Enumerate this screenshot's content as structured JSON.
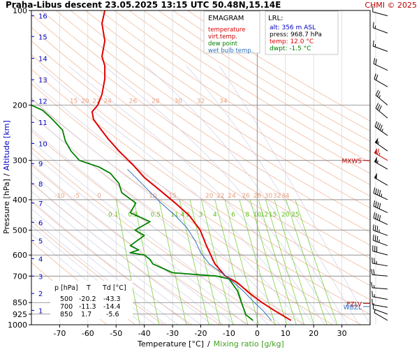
{
  "header": {
    "title": "Praha-Libus   descent   23.05.2025 13:15 UTC  50.48N,15.14E",
    "credit": "CHMI © 2025"
  },
  "colors": {
    "temperature": "#e00000",
    "virt_temp": "#c00000",
    "dew_point": "#008000",
    "wet_bulb": "#3070c0",
    "dry_adiabat": "#f0b090",
    "moist_adiabat": "#c8c8e6",
    "mixing_ratio": "#80d040",
    "isobar": "#808080",
    "altitude": "#0000c0",
    "level_marker": "#c00000"
  },
  "legend": {
    "title": "EMAGRAM",
    "items": [
      {
        "label": "temperature",
        "color": "#e00000"
      },
      {
        "label": "virt.temp.",
        "color": "#c00000"
      },
      {
        "label": "dew point",
        "color": "#008000"
      },
      {
        "label": "wet bulb temp.",
        "color": "#3070c0"
      }
    ]
  },
  "lrl": {
    "title": "LRL:",
    "lines": [
      {
        "text": "alt: 356 m ASL",
        "color": "#0000c0"
      },
      {
        "text": "press: 968.7 hPa",
        "color": "#000000"
      },
      {
        "text": "temp: 12.0 °C",
        "color": "#e00000"
      },
      {
        "text": "dwpt: -1.5 °C",
        "color": "#008000"
      }
    ]
  },
  "table": {
    "header": [
      "p [hPa]",
      "T",
      "Td [°C]"
    ],
    "rows": [
      [
        "500",
        "-20.2",
        "-43.3"
      ],
      [
        "700",
        "-11.3",
        "-14.4"
      ],
      [
        "850",
        "1.7",
        "-5.6"
      ]
    ]
  },
  "axes": {
    "ylabel_pressure": "Pressure [hPa]",
    "ylabel_sep": "/",
    "ylabel_altitude": "Altitude [km]",
    "xlabel_temp": "Temperature [°C]",
    "xlabel_sep": "/",
    "xlabel_mixing": "Mixing ratio [g/kg]"
  },
  "chart_data": {
    "type": "line",
    "y_scale": "log-pressure",
    "ylim": [
      1000,
      100
    ],
    "xlim": [
      -80,
      40
    ],
    "pressure_ticks": [
      100,
      200,
      300,
      400,
      500,
      600,
      700,
      850,
      925,
      1000
    ],
    "temperature_ticks": [
      -70,
      -60,
      -50,
      -40,
      -30,
      -20,
      -10,
      0,
      10,
      20,
      30
    ],
    "altitude_ticks": [
      {
        "label": "1",
        "p": 900
      },
      {
        "label": "2",
        "p": 795
      },
      {
        "label": "3",
        "p": 700
      },
      {
        "label": "4",
        "p": 616
      },
      {
        "label": "5",
        "p": 540
      },
      {
        "label": "6",
        "p": 472
      },
      {
        "label": "7",
        "p": 410
      },
      {
        "label": "8",
        "p": 356
      },
      {
        "label": "9",
        "p": 307
      },
      {
        "label": "10",
        "p": 265
      },
      {
        "label": "11",
        "p": 227
      },
      {
        "label": "12",
        "p": 194
      },
      {
        "label": "13",
        "p": 166
      },
      {
        "label": "14",
        "p": 142
      },
      {
        "label": "15",
        "p": 121
      },
      {
        "label": "16",
        "p": 104
      }
    ],
    "dry_adiabat_labels": [
      {
        "text": "15",
        "t": -65,
        "p": 200
      },
      {
        "text": "20",
        "t": -61,
        "p": 200
      },
      {
        "text": "22",
        "t": -57,
        "p": 200
      },
      {
        "text": "24",
        "t": -53,
        "p": 200
      },
      {
        "text": "26",
        "t": -44,
        "p": 200
      },
      {
        "text": "28",
        "t": -36,
        "p": 200
      },
      {
        "text": "30",
        "t": -28,
        "p": 200
      },
      {
        "text": "32",
        "t": -20,
        "p": 200
      },
      {
        "text": "34",
        "t": -12,
        "p": 200
      },
      {
        "text": "-10",
        "t": -70,
        "p": 400
      },
      {
        "text": "-5",
        "t": -64,
        "p": 400
      },
      {
        "text": "0",
        "t": -56,
        "p": 400
      },
      {
        "text": "10",
        "t": -37,
        "p": 400
      },
      {
        "text": "15",
        "t": -30,
        "p": 400
      },
      {
        "text": "20",
        "t": -17,
        "p": 400
      },
      {
        "text": "22",
        "t": -13,
        "p": 400
      },
      {
        "text": "24",
        "t": -9,
        "p": 400
      },
      {
        "text": "26",
        "t": -4,
        "p": 400
      },
      {
        "text": "28",
        "t": 0,
        "p": 400
      },
      {
        "text": "30",
        "t": 4,
        "p": 400
      },
      {
        "text": "32",
        "t": 7,
        "p": 400
      },
      {
        "text": "34",
        "t": 10,
        "p": 400
      }
    ],
    "mixing_ratio_labels": [
      {
        "text": "0.1",
        "t": -51,
        "p": 460
      },
      {
        "text": "0.2",
        "t": -44,
        "p": 460
      },
      {
        "text": "0.5",
        "t": -36,
        "p": 460
      },
      {
        "text": "1",
        "t": -30,
        "p": 460
      },
      {
        "text": "1.4",
        "t": -27.5,
        "p": 460
      },
      {
        "text": "2",
        "t": -24.5,
        "p": 460
      },
      {
        "text": "3",
        "t": -20,
        "p": 460
      },
      {
        "text": "4",
        "t": -15,
        "p": 460
      },
      {
        "text": "6",
        "t": -8.5,
        "p": 460
      },
      {
        "text": "8",
        "t": -3.5,
        "p": 460
      },
      {
        "text": "10",
        "t": 0,
        "p": 460
      },
      {
        "text": "12",
        "t": 2.5,
        "p": 460
      },
      {
        "text": "15",
        "t": 5.5,
        "p": 460
      },
      {
        "text": "20",
        "t": 10,
        "p": 460
      },
      {
        "text": "25",
        "t": 13.5,
        "p": 460
      }
    ],
    "series": [
      {
        "name": "temperature",
        "color": "#e00000",
        "points": [
          [
            12.0,
            968.7
          ],
          [
            6,
            900
          ],
          [
            1.7,
            850
          ],
          [
            -3,
            790
          ],
          [
            -7,
            735
          ],
          [
            -11.3,
            700
          ],
          [
            -15,
            640
          ],
          [
            -18,
            560
          ],
          [
            -20.2,
            500
          ],
          [
            -24,
            450
          ],
          [
            -29,
            410
          ],
          [
            -35,
            370
          ],
          [
            -40,
            340
          ],
          [
            -44,
            310
          ],
          [
            -49,
            280
          ],
          [
            -53,
            255
          ],
          [
            -56,
            235
          ],
          [
            -58,
            222
          ],
          [
            -58.5,
            210
          ],
          [
            -56.5,
            200
          ],
          [
            -55,
            185
          ],
          [
            -54,
            165
          ],
          [
            -54,
            150
          ],
          [
            -55,
            140
          ],
          [
            -54,
            125
          ],
          [
            -55,
            110
          ],
          [
            -54,
            100
          ]
        ]
      },
      {
        "name": "dew point",
        "color": "#008000",
        "points": [
          [
            -1.5,
            968.7
          ],
          [
            -4,
            930
          ],
          [
            -5.6,
            850
          ],
          [
            -7,
            780
          ],
          [
            -10,
            715
          ],
          [
            -14.4,
            700
          ],
          [
            -30,
            683
          ],
          [
            -37,
            640
          ],
          [
            -38,
            620
          ],
          [
            -40,
            600
          ],
          [
            -45,
            590
          ],
          [
            -42,
            578
          ],
          [
            -45,
            560
          ],
          [
            -40,
            520
          ],
          [
            -43.3,
            500
          ],
          [
            -38,
            470
          ],
          [
            -45,
            440
          ],
          [
            -43,
            410
          ],
          [
            -48,
            380
          ],
          [
            -49,
            355
          ],
          [
            -52,
            330
          ],
          [
            -56,
            315
          ],
          [
            -63,
            300
          ],
          [
            -66,
            280
          ],
          [
            -68,
            260
          ],
          [
            -69,
            240
          ],
          [
            -73,
            220
          ],
          [
            -76,
            208
          ],
          [
            -80,
            200
          ]
        ]
      },
      {
        "name": "wet bulb temp.",
        "color": "#3070c0",
        "points": [
          [
            5,
            968.7
          ],
          [
            2,
            900
          ],
          [
            -1,
            850
          ],
          [
            -5,
            780
          ],
          [
            -11,
            700
          ],
          [
            -17,
            640
          ],
          [
            -20,
            590
          ],
          [
            -22,
            540
          ],
          [
            -25,
            490
          ],
          [
            -29,
            450
          ],
          [
            -34,
            410
          ],
          [
            -39,
            370
          ],
          [
            -43,
            340
          ],
          [
            -46,
            320
          ]
        ]
      }
    ],
    "levels": [
      {
        "label": "MXWS",
        "p": 300
      },
      {
        "label": "FZLV",
        "p": 855
      },
      {
        "label": "WBZL",
        "p": 875
      }
    ]
  },
  "wind_profile": [
    {
      "p": 968,
      "speed": 5,
      "dir": 300
    },
    {
      "p": 925,
      "speed": 10,
      "dir": 290
    },
    {
      "p": 880,
      "speed": 10,
      "dir": 280
    },
    {
      "p": 830,
      "speed": 15,
      "dir": 280
    },
    {
      "p": 770,
      "speed": 15,
      "dir": 275
    },
    {
      "p": 700,
      "speed": 20,
      "dir": 275
    },
    {
      "p": 650,
      "speed": 25,
      "dir": 280
    },
    {
      "p": 600,
      "speed": 30,
      "dir": 285
    },
    {
      "p": 560,
      "speed": 35,
      "dir": 290
    },
    {
      "p": 520,
      "speed": 35,
      "dir": 290
    },
    {
      "p": 480,
      "speed": 40,
      "dir": 295
    },
    {
      "p": 440,
      "speed": 40,
      "dir": 295
    },
    {
      "p": 400,
      "speed": 45,
      "dir": 295
    },
    {
      "p": 360,
      "speed": 50,
      "dir": 300
    },
    {
      "p": 320,
      "speed": 55,
      "dir": 300
    },
    {
      "p": 300,
      "speed": 65,
      "dir": 300
    },
    {
      "p": 280,
      "speed": 55,
      "dir": 305
    },
    {
      "p": 250,
      "speed": 45,
      "dir": 305
    },
    {
      "p": 220,
      "speed": 30,
      "dir": 310
    },
    {
      "p": 200,
      "speed": 25,
      "dir": 310
    },
    {
      "p": 175,
      "speed": 20,
      "dir": 300
    },
    {
      "p": 155,
      "speed": 20,
      "dir": 295
    },
    {
      "p": 135,
      "speed": 15,
      "dir": 290
    },
    {
      "p": 118,
      "speed": 15,
      "dir": 290
    },
    {
      "p": 104,
      "speed": 10,
      "dir": 285
    }
  ]
}
